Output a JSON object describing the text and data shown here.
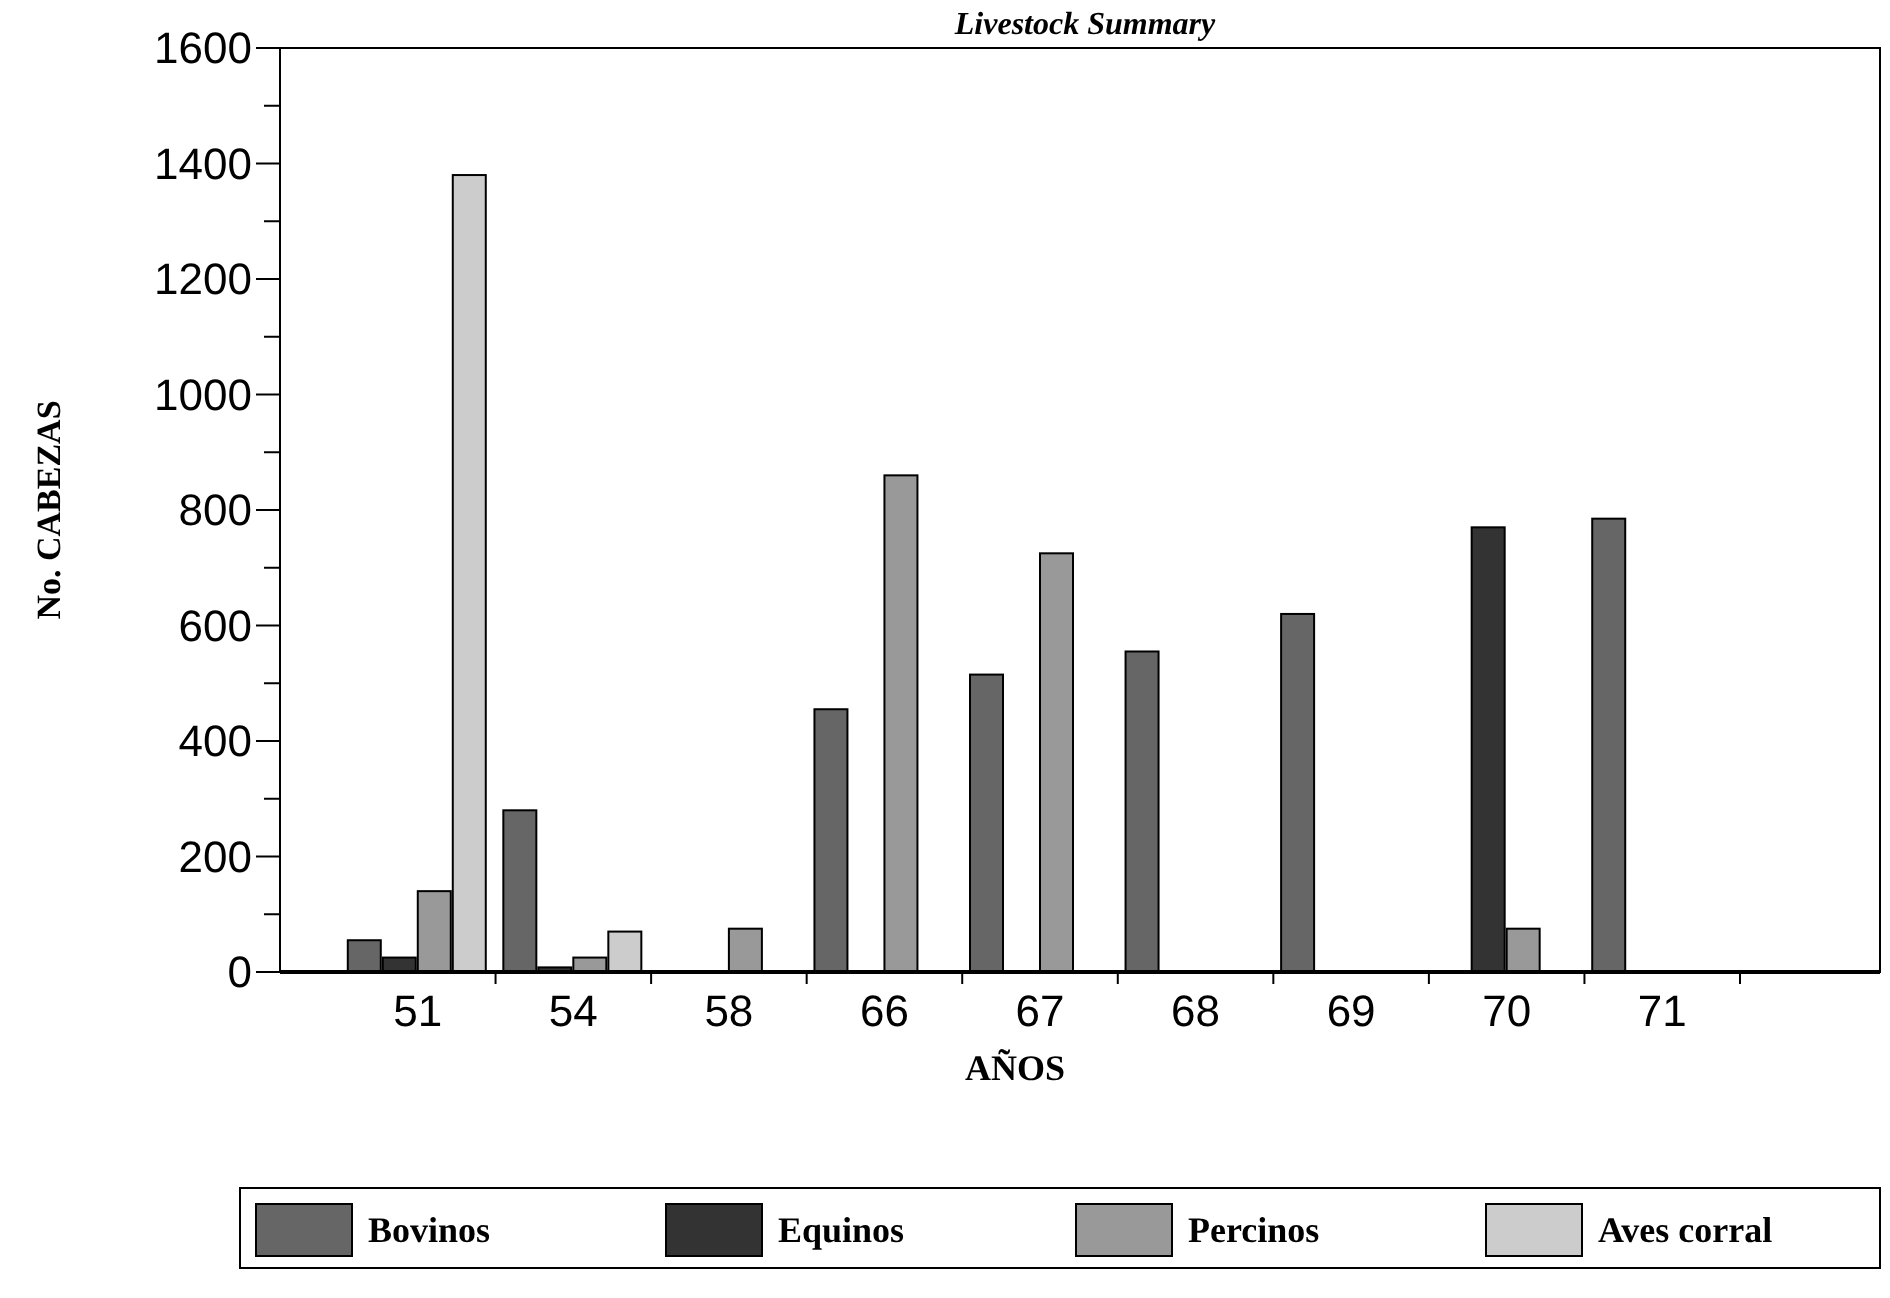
{
  "chart_data": {
    "type": "bar",
    "title": "Livestock Summary",
    "xlabel": "AÑOS",
    "ylabel": "No. CABEZAS",
    "categories": [
      "51",
      "54",
      "58",
      "66",
      "67",
      "68",
      "69",
      "70",
      "71"
    ],
    "series": [
      {
        "name": "Bovinos",
        "color": "#666666",
        "values": [
          55,
          280,
          0,
          455,
          515,
          555,
          620,
          0,
          785
        ]
      },
      {
        "name": "Equinos",
        "color": "#333333",
        "values": [
          25,
          8,
          0,
          0,
          0,
          0,
          0,
          770,
          0
        ]
      },
      {
        "name": "Percinos",
        "color": "#999999",
        "values": [
          140,
          25,
          75,
          860,
          725,
          0,
          0,
          75,
          0
        ]
      },
      {
        "name": "Aves corral",
        "color": "#cccccc",
        "values": [
          1380,
          70,
          0,
          0,
          0,
          0,
          0,
          0,
          0
        ]
      }
    ],
    "ylim": [
      0,
      1600
    ],
    "yticks": [
      0,
      {
        "value": 100,
        "label": null
      },
      200,
      {
        "value": 300,
        "label": null
      },
      400,
      {
        "value": 500,
        "label": null
      },
      600,
      {
        "value": 700,
        "label": null
      },
      800,
      {
        "value": 900,
        "label": null
      },
      1000,
      {
        "value": 1100,
        "label": null
      },
      1200,
      {
        "value": 1300,
        "label": null
      },
      1400,
      {
        "value": 1500,
        "label": null
      },
      1600
    ],
    "grid": false,
    "legend": "bottom"
  }
}
